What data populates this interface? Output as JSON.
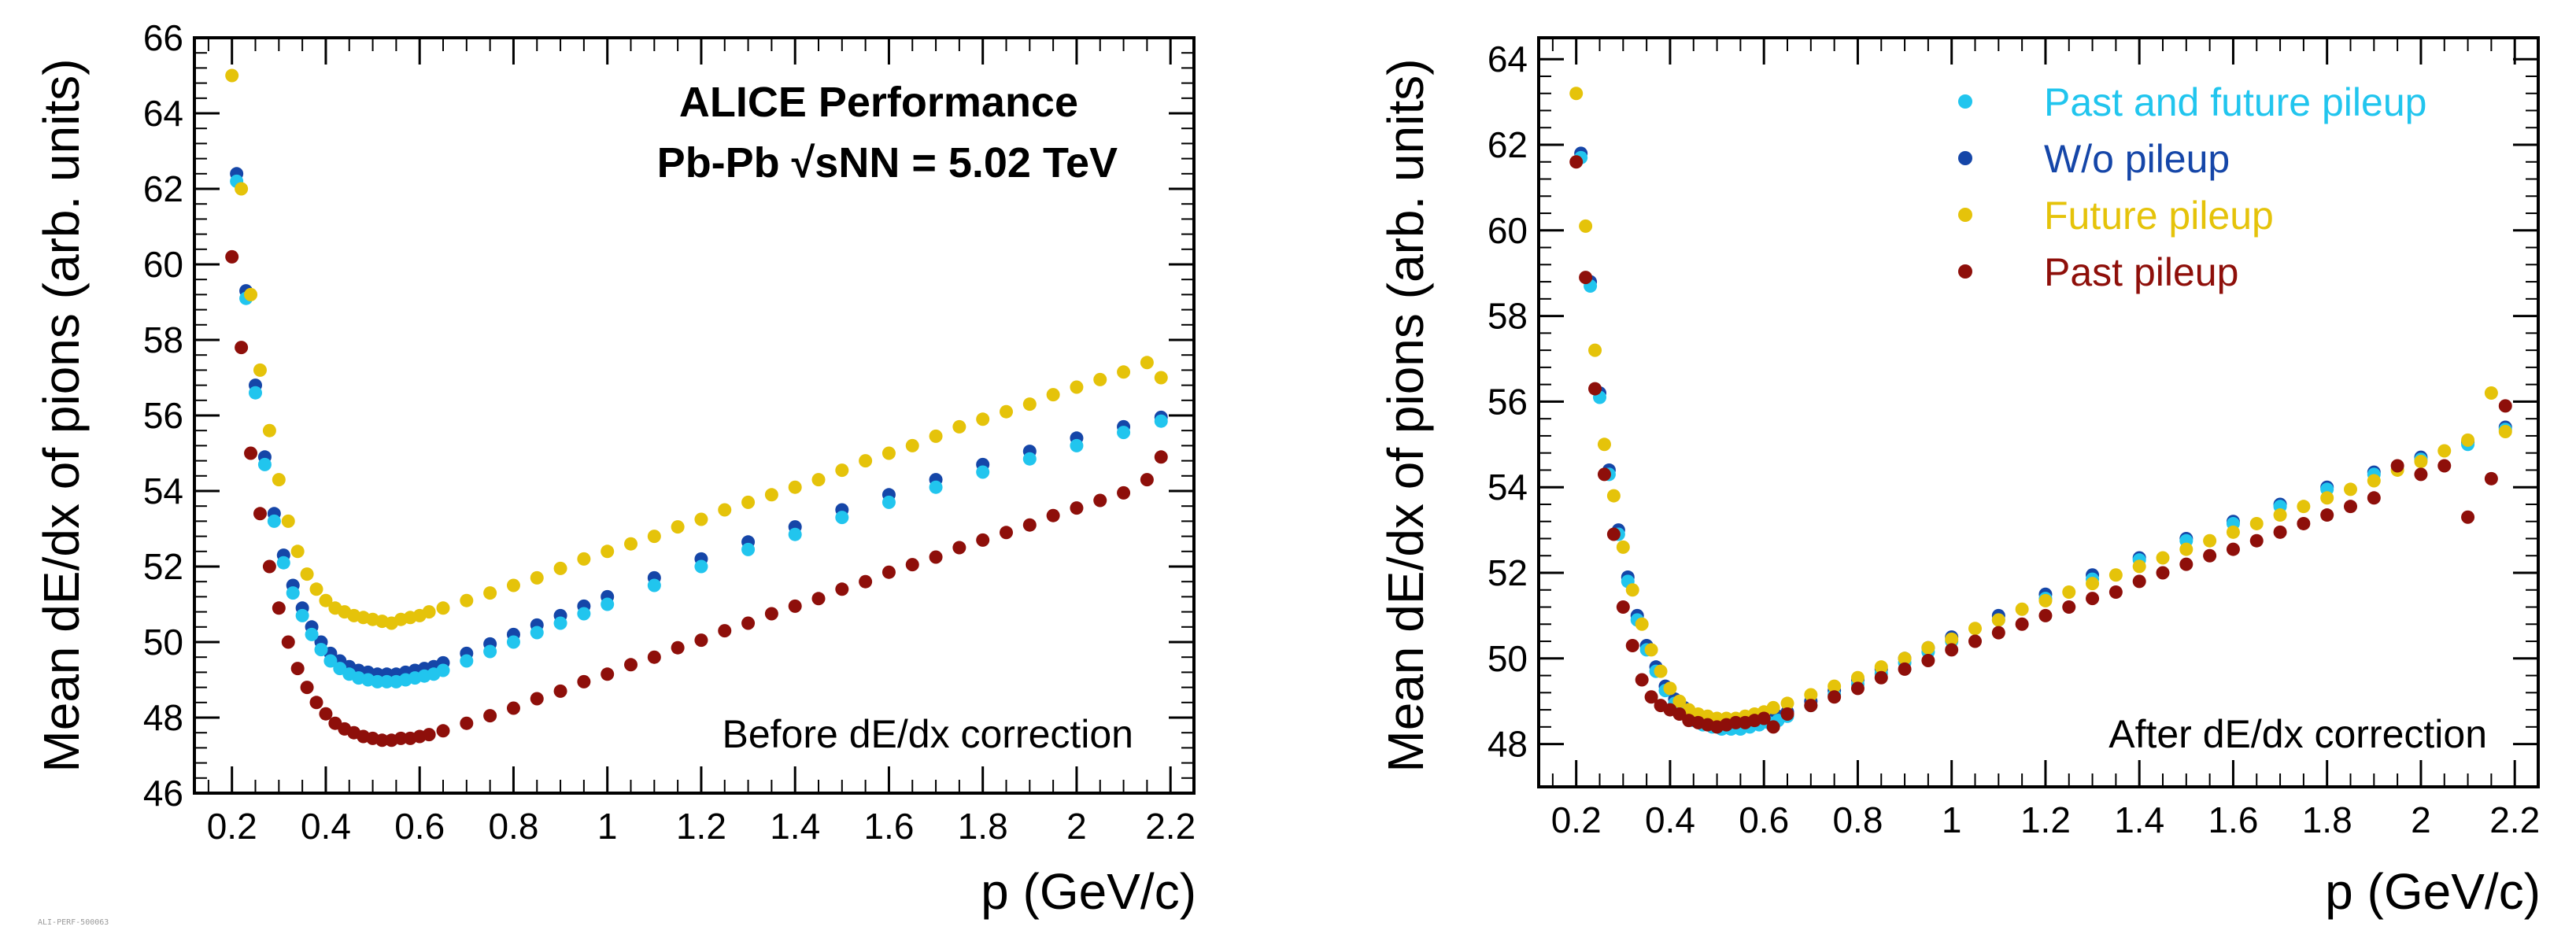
{
  "figure": {
    "watermark": "ALI-PERF-500063"
  },
  "colors": {
    "past_and_future": "#21c5ee",
    "without_pileup": "#1546a8",
    "future": "#e5c30a",
    "past": "#8e0f0a"
  },
  "chart_data": [
    {
      "type": "scatter",
      "panel": "left",
      "annotation": "Before dE/dx correction",
      "performance_label": "ALICE Performance",
      "system_label": "Pb-Pb √sNN = 5.02 TeV",
      "xlabel": "p (GeV/c)",
      "ylabel": "Mean dE/dx of pions (arb. units)",
      "xlim": [
        0.12,
        2.25
      ],
      "ylim": [
        46,
        66
      ],
      "xticks": [
        "0.2",
        "0.4",
        "0.6",
        "0.8",
        "1",
        "1.2",
        "1.4",
        "1.6",
        "1.8",
        "2",
        "2.2"
      ],
      "yticks": [
        "46",
        "48",
        "50",
        "52",
        "54",
        "56",
        "58",
        "60",
        "62",
        "64",
        "66"
      ],
      "series": [
        {
          "name": "W/o pileup",
          "color_key": "without_pileup",
          "x": [
            0.21,
            0.23,
            0.25,
            0.27,
            0.29,
            0.31,
            0.33,
            0.35,
            0.37,
            0.39,
            0.41,
            0.43,
            0.45,
            0.47,
            0.49,
            0.51,
            0.53,
            0.55,
            0.57,
            0.59,
            0.61,
            0.63,
            0.65,
            0.7,
            0.75,
            0.8,
            0.85,
            0.9,
            0.95,
            1.0,
            1.1,
            1.2,
            1.3,
            1.4,
            1.5,
            1.6,
            1.7,
            1.8,
            1.9,
            2.0,
            2.1,
            2.18
          ],
          "y": [
            62.4,
            59.3,
            56.8,
            54.9,
            53.4,
            52.3,
            51.5,
            50.9,
            50.4,
            50.0,
            49.7,
            49.5,
            49.35,
            49.25,
            49.2,
            49.15,
            49.15,
            49.15,
            49.2,
            49.25,
            49.3,
            49.35,
            49.45,
            49.7,
            49.95,
            50.2,
            50.45,
            50.7,
            50.95,
            51.2,
            51.7,
            52.2,
            52.65,
            53.05,
            53.5,
            53.9,
            54.3,
            54.7,
            55.05,
            55.4,
            55.7,
            55.95
          ]
        },
        {
          "name": "Past and future pileup",
          "color_key": "past_and_future",
          "x": [
            0.21,
            0.23,
            0.25,
            0.27,
            0.29,
            0.31,
            0.33,
            0.35,
            0.37,
            0.39,
            0.41,
            0.43,
            0.45,
            0.47,
            0.49,
            0.51,
            0.53,
            0.55,
            0.57,
            0.59,
            0.61,
            0.63,
            0.65,
            0.7,
            0.75,
            0.8,
            0.85,
            0.9,
            0.95,
            1.0,
            1.1,
            1.2,
            1.3,
            1.4,
            1.5,
            1.6,
            1.7,
            1.8,
            1.9,
            2.0,
            2.1,
            2.18
          ],
          "y": [
            62.2,
            59.1,
            56.6,
            54.7,
            53.2,
            52.1,
            51.3,
            50.7,
            50.2,
            49.8,
            49.5,
            49.3,
            49.15,
            49.05,
            49.0,
            48.95,
            48.95,
            48.95,
            49.0,
            49.05,
            49.1,
            49.15,
            49.25,
            49.5,
            49.75,
            50.0,
            50.25,
            50.5,
            50.75,
            51.0,
            51.5,
            52.0,
            52.45,
            52.85,
            53.3,
            53.7,
            54.1,
            54.5,
            54.85,
            55.2,
            55.55,
            55.85
          ]
        },
        {
          "name": "Future pileup",
          "color_key": "future",
          "x": [
            0.2,
            0.22,
            0.24,
            0.26,
            0.28,
            0.3,
            0.32,
            0.34,
            0.36,
            0.38,
            0.4,
            0.42,
            0.44,
            0.46,
            0.48,
            0.5,
            0.52,
            0.54,
            0.56,
            0.58,
            0.6,
            0.62,
            0.65,
            0.7,
            0.75,
            0.8,
            0.85,
            0.9,
            0.95,
            1.0,
            1.05,
            1.1,
            1.15,
            1.2,
            1.25,
            1.3,
            1.35,
            1.4,
            1.45,
            1.5,
            1.55,
            1.6,
            1.65,
            1.7,
            1.75,
            1.8,
            1.85,
            1.9,
            1.95,
            2.0,
            2.05,
            2.1,
            2.15,
            2.18
          ],
          "y": [
            65.0,
            62.0,
            59.2,
            57.2,
            55.6,
            54.3,
            53.2,
            52.4,
            51.8,
            51.4,
            51.1,
            50.9,
            50.8,
            50.7,
            50.65,
            50.6,
            50.55,
            50.5,
            50.6,
            50.65,
            50.7,
            50.8,
            50.9,
            51.1,
            51.3,
            51.5,
            51.7,
            51.95,
            52.2,
            52.4,
            52.6,
            52.8,
            53.05,
            53.25,
            53.5,
            53.7,
            53.9,
            54.1,
            54.3,
            54.55,
            54.8,
            55.0,
            55.2,
            55.45,
            55.7,
            55.9,
            56.1,
            56.3,
            56.55,
            56.75,
            56.95,
            57.15,
            57.4,
            57.0
          ]
        },
        {
          "name": "Past pileup",
          "color_key": "past",
          "x": [
            0.2,
            0.22,
            0.24,
            0.26,
            0.28,
            0.3,
            0.32,
            0.34,
            0.36,
            0.38,
            0.4,
            0.42,
            0.44,
            0.46,
            0.48,
            0.5,
            0.52,
            0.54,
            0.56,
            0.58,
            0.6,
            0.62,
            0.65,
            0.7,
            0.75,
            0.8,
            0.85,
            0.9,
            0.95,
            1.0,
            1.05,
            1.1,
            1.15,
            1.2,
            1.25,
            1.3,
            1.35,
            1.4,
            1.45,
            1.5,
            1.55,
            1.6,
            1.65,
            1.7,
            1.75,
            1.8,
            1.85,
            1.9,
            1.95,
            2.0,
            2.05,
            2.1,
            2.15,
            2.18
          ],
          "y": [
            60.2,
            57.8,
            55.0,
            53.4,
            52.0,
            50.9,
            50.0,
            49.3,
            48.8,
            48.4,
            48.1,
            47.85,
            47.7,
            47.6,
            47.5,
            47.45,
            47.4,
            47.4,
            47.45,
            47.45,
            47.5,
            47.55,
            47.65,
            47.85,
            48.05,
            48.25,
            48.5,
            48.7,
            48.95,
            49.15,
            49.4,
            49.6,
            49.85,
            50.05,
            50.3,
            50.5,
            50.75,
            50.95,
            51.15,
            51.4,
            51.6,
            51.85,
            52.05,
            52.25,
            52.5,
            52.7,
            52.9,
            53.1,
            53.35,
            53.55,
            53.75,
            53.95,
            54.3,
            54.9
          ]
        }
      ]
    },
    {
      "type": "scatter",
      "panel": "right",
      "annotation": "After dE/dx correction",
      "xlabel": "p (GeV/c)",
      "ylabel": "Mean dE/dx of pions (arb. units)",
      "xlim": [
        0.12,
        2.25
      ],
      "ylim": [
        47,
        64.5
      ],
      "xticks": [
        "0.2",
        "0.4",
        "0.6",
        "0.8",
        "1",
        "1.2",
        "1.4",
        "1.6",
        "1.8",
        "2",
        "2.2"
      ],
      "yticks": [
        "48",
        "50",
        "52",
        "54",
        "56",
        "58",
        "60",
        "62",
        "64"
      ],
      "legend": {
        "position": "top-right",
        "entries": [
          {
            "label": "Past and future pileup",
            "color_key": "past_and_future"
          },
          {
            "label": "W/o pileup",
            "color_key": "without_pileup"
          },
          {
            "label": "Future pileup",
            "color_key": "future"
          },
          {
            "label": "Past pileup",
            "color_key": "past"
          }
        ]
      },
      "series": [
        {
          "name": "W/o pileup",
          "color_key": "without_pileup",
          "x": [
            0.21,
            0.23,
            0.25,
            0.27,
            0.29,
            0.31,
            0.33,
            0.35,
            0.37,
            0.39,
            0.41,
            0.43,
            0.45,
            0.47,
            0.49,
            0.51,
            0.53,
            0.55,
            0.57,
            0.59,
            0.61,
            0.63,
            0.65,
            0.7,
            0.75,
            0.8,
            0.85,
            0.9,
            0.95,
            1.0,
            1.1,
            1.2,
            1.3,
            1.4,
            1.5,
            1.6,
            1.7,
            1.8,
            1.9,
            2.0,
            2.1,
            2.18
          ],
          "y": [
            61.8,
            58.8,
            56.2,
            54.4,
            53.0,
            51.9,
            51.0,
            50.3,
            49.8,
            49.35,
            49.05,
            48.85,
            48.65,
            48.55,
            48.5,
            48.45,
            48.45,
            48.45,
            48.5,
            48.55,
            48.6,
            48.65,
            48.75,
            49.0,
            49.25,
            49.5,
            49.75,
            50.0,
            50.25,
            50.5,
            51.0,
            51.5,
            51.95,
            52.35,
            52.8,
            53.2,
            53.6,
            54.0,
            54.35,
            54.7,
            55.05,
            55.4
          ]
        },
        {
          "name": "Past and future pileup",
          "color_key": "past_and_future",
          "x": [
            0.21,
            0.23,
            0.25,
            0.27,
            0.29,
            0.31,
            0.33,
            0.35,
            0.37,
            0.39,
            0.41,
            0.43,
            0.45,
            0.47,
            0.49,
            0.51,
            0.53,
            0.55,
            0.57,
            0.59,
            0.61,
            0.63,
            0.65,
            0.7,
            0.75,
            0.8,
            0.85,
            0.9,
            0.95,
            1.0,
            1.1,
            1.2,
            1.3,
            1.4,
            1.5,
            1.6,
            1.7,
            1.8,
            1.9,
            2.0,
            2.1,
            2.18
          ],
          "y": [
            61.7,
            58.7,
            56.1,
            54.3,
            52.9,
            51.8,
            50.9,
            50.2,
            49.7,
            49.25,
            48.95,
            48.75,
            48.55,
            48.45,
            48.4,
            48.35,
            48.35,
            48.35,
            48.4,
            48.45,
            48.5,
            48.55,
            48.65,
            48.9,
            49.15,
            49.4,
            49.65,
            49.9,
            50.15,
            50.4,
            50.9,
            51.4,
            51.85,
            52.3,
            52.75,
            53.15,
            53.55,
            53.95,
            54.3,
            54.65,
            55.0,
            55.35
          ]
        },
        {
          "name": "Future pileup",
          "color_key": "future",
          "x": [
            0.2,
            0.22,
            0.24,
            0.26,
            0.28,
            0.3,
            0.32,
            0.34,
            0.36,
            0.38,
            0.4,
            0.42,
            0.44,
            0.46,
            0.48,
            0.5,
            0.52,
            0.54,
            0.56,
            0.58,
            0.6,
            0.62,
            0.65,
            0.7,
            0.75,
            0.8,
            0.85,
            0.9,
            0.95,
            1.0,
            1.05,
            1.1,
            1.15,
            1.2,
            1.25,
            1.3,
            1.35,
            1.4,
            1.45,
            1.5,
            1.55,
            1.6,
            1.65,
            1.7,
            1.75,
            1.8,
            1.85,
            1.9,
            1.95,
            2.0,
            2.05,
            2.1,
            2.15,
            2.18
          ],
          "y": [
            63.2,
            60.1,
            57.2,
            55.0,
            53.8,
            52.6,
            51.6,
            50.8,
            50.2,
            49.7,
            49.3,
            49.0,
            48.8,
            48.7,
            48.65,
            48.6,
            48.6,
            48.6,
            48.65,
            48.7,
            48.75,
            48.85,
            48.95,
            49.15,
            49.35,
            49.55,
            49.8,
            50.0,
            50.25,
            50.45,
            50.7,
            50.9,
            51.15,
            51.35,
            51.55,
            51.75,
            51.95,
            52.15,
            52.35,
            52.55,
            52.75,
            52.95,
            53.15,
            53.35,
            53.55,
            53.75,
            53.95,
            54.15,
            54.4,
            54.6,
            54.85,
            55.1,
            56.2,
            55.3
          ]
        },
        {
          "name": "Past pileup",
          "color_key": "past",
          "x": [
            0.2,
            0.22,
            0.24,
            0.26,
            0.28,
            0.3,
            0.32,
            0.34,
            0.36,
            0.38,
            0.4,
            0.42,
            0.44,
            0.46,
            0.48,
            0.5,
            0.52,
            0.54,
            0.56,
            0.58,
            0.6,
            0.62,
            0.65,
            0.7,
            0.75,
            0.8,
            0.85,
            0.9,
            0.95,
            1.0,
            1.05,
            1.1,
            1.15,
            1.2,
            1.25,
            1.3,
            1.35,
            1.4,
            1.45,
            1.5,
            1.55,
            1.6,
            1.65,
            1.7,
            1.75,
            1.8,
            1.85,
            1.9,
            1.95,
            2.0,
            2.05,
            2.1,
            2.15,
            2.18
          ],
          "y": [
            61.6,
            58.9,
            56.3,
            54.3,
            52.9,
            51.2,
            50.3,
            49.5,
            49.1,
            48.9,
            48.8,
            48.7,
            48.55,
            48.5,
            48.45,
            48.4,
            48.45,
            48.5,
            48.5,
            48.55,
            48.6,
            48.4,
            48.7,
            48.9,
            49.1,
            49.3,
            49.55,
            49.75,
            49.95,
            50.2,
            50.4,
            50.6,
            50.8,
            51.0,
            51.2,
            51.4,
            51.55,
            51.8,
            52.0,
            52.2,
            52.4,
            52.55,
            52.75,
            52.95,
            53.15,
            53.35,
            53.55,
            53.75,
            54.5,
            54.3,
            54.5,
            53.3,
            54.2,
            55.9
          ]
        }
      ]
    }
  ]
}
